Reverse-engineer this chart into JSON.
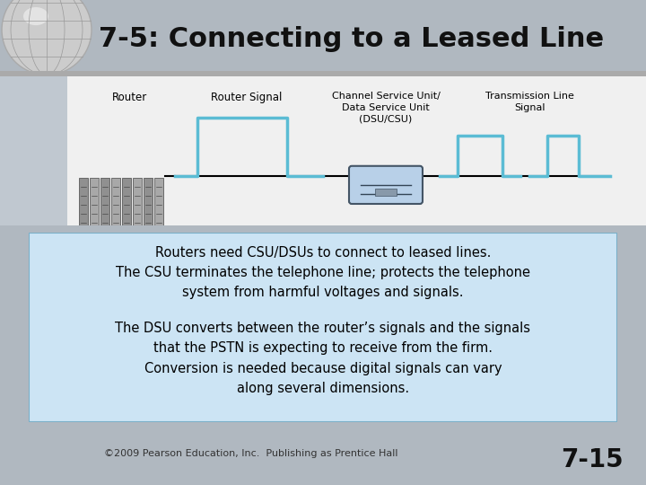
{
  "title": "7-5: Connecting to a Leased Line",
  "title_fontsize": 22,
  "title_color": "#111111",
  "bg_color": "#b0b8c0",
  "header_bg": "#ffffff",
  "text_box_bg": "#cce4f4",
  "text_box_border": "#7aafc8",
  "footer_text": "©2009 Pearson Education, Inc.  Publishing as Prentice Hall",
  "slide_number": "7-15",
  "signal_color": "#5bbcd4",
  "label_router": "Router",
  "label_router_signal": "Router Signal",
  "label_csu": "Channel Service Unit/\nData Service Unit\n(DSU/CSU)",
  "label_tx": "Transmission Line\nSignal",
  "body_text1": "Routers need CSU/DSUs to connect to leased lines.\nThe CSU terminates the telephone line; protects the telephone\nsystem from harmful voltages and signals.",
  "body_text2": "The DSU converts between the router’s signals and the signals\nthat the PSTN is expecting to receive from the firm.\nConversion is needed because digital signals can vary\nalong several dimensions."
}
